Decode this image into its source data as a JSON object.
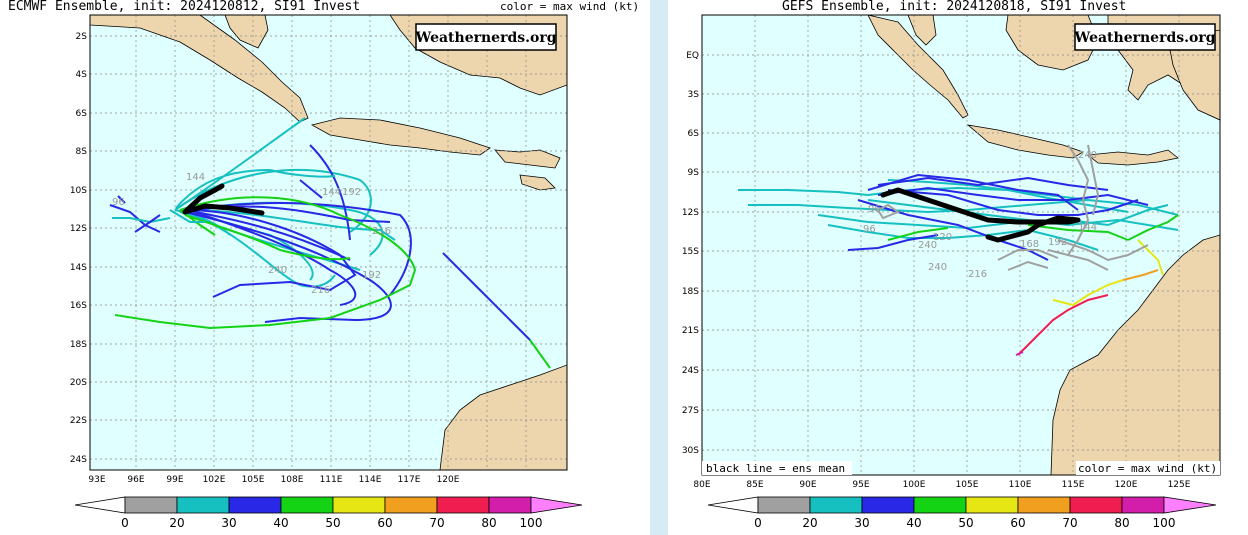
{
  "left": {
    "title": "ECMWF Ensemble, init: 2024120812, SI91 Invest",
    "subtitle": "color = max wind (kt)",
    "watermark": "Weathernerds.org",
    "lat_labels": [
      "2S",
      "4S",
      "6S",
      "8S",
      "10S",
      "12S",
      "14S",
      "16S",
      "18S",
      "20S",
      "22S",
      "24S"
    ],
    "lon_labels": [
      "93E",
      "96E",
      "99E",
      "102E",
      "105E",
      "108E",
      "111E",
      "114E",
      "117E",
      "120E"
    ],
    "hour_labels": [
      "96",
      "144",
      "144",
      "192",
      "216",
      "240",
      "192",
      "216"
    ],
    "colorbar_labels": [
      "0",
      "20",
      "30",
      "40",
      "50",
      "60",
      "70",
      "80",
      "100"
    ]
  },
  "right": {
    "title": "GEFS Ensemble, init: 2024120818, SI91 Invest",
    "watermark": "Weathernerds.org",
    "lat_labels": [
      "EQ",
      "3S",
      "6S",
      "9S",
      "12S",
      "15S",
      "18S",
      "21S",
      "24S",
      "27S",
      "30S"
    ],
    "lon_labels": [
      "80E",
      "85E",
      "90E",
      "95E",
      "100E",
      "105E",
      "110E",
      "115E",
      "120E",
      "125E"
    ],
    "hour_labels": [
      "96",
      "96",
      "120",
      "240",
      "240",
      "216",
      "168",
      "192",
      "144",
      "240"
    ],
    "legend_left": "black line = ens mean",
    "legend_right": "color = max wind (kt)",
    "colorbar_labels": [
      "0",
      "20",
      "30",
      "40",
      "50",
      "60",
      "70",
      "80",
      "100"
    ]
  },
  "colors": {
    "ocean": "#e0ffff",
    "land": "#edd5ad",
    "bin_0_20": "#a0a0a0",
    "bin_20_30": "#17c0c0",
    "bin_30_40": "#2828e6",
    "bin_40_50": "#14d214",
    "bin_50_60": "#e6e614",
    "bin_60_70": "#f0a01e",
    "bin_70_80": "#f01e50",
    "bin_80_100": "#d21eaa",
    "bin_100_plus": "#ff80ff",
    "mean_track": "#000000"
  }
}
